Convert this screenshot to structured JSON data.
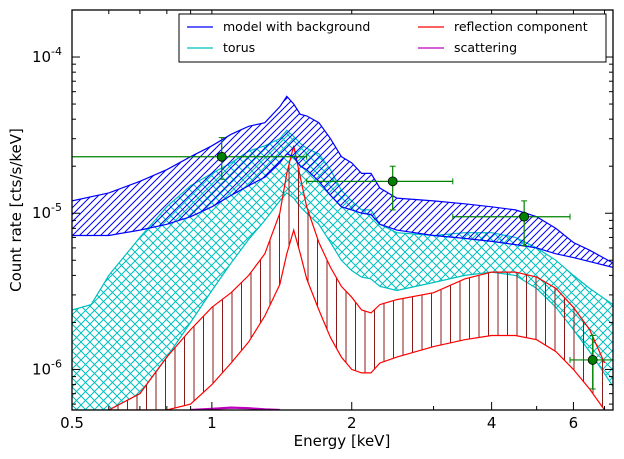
{
  "chart_data": {
    "type": "line",
    "xlabel": "Energy [keV]",
    "ylabel": "Count rate [cts/s/keV]",
    "xscale": "log",
    "yscale": "log",
    "xlim": [
      0.5,
      7.3
    ],
    "ylim": [
      5.5e-07,
      0.0002
    ],
    "x_ticks": [
      {
        "value": 0.5,
        "label": "0.5"
      },
      {
        "value": 1,
        "label": "1"
      },
      {
        "value": 2,
        "label": "2"
      },
      {
        "value": 4,
        "label": "4"
      },
      {
        "value": 6,
        "label": "6"
      }
    ],
    "y_ticks": [
      {
        "value": 1e-06,
        "base": "10",
        "exp": "-6"
      },
      {
        "value": 1e-05,
        "base": "10",
        "exp": "-5"
      },
      {
        "value": 0.0001,
        "base": "10",
        "exp": "-4"
      }
    ],
    "legend_position": "top-right",
    "legend_columns": 2,
    "legend": [
      {
        "label": "model with background",
        "color": "#0000ff"
      },
      {
        "label": "torus",
        "color": "#00bfbf"
      },
      {
        "label": "reflection component",
        "color": "#ff0000"
      },
      {
        "label": "scattering",
        "color": "#bf00bf"
      }
    ],
    "colors": {
      "model": "#0000ff",
      "torus": "#00bfbf",
      "reflection": "#ff0000",
      "reflection_hatch": "#8b1a1a",
      "scattering": "#bf00bf",
      "data": "#008000"
    },
    "series": [
      {
        "name": "model with background",
        "style": "band-hatched-diagonal",
        "x": [
          0.5,
          0.6,
          0.7,
          0.8,
          0.9,
          1.0,
          1.1,
          1.2,
          1.3,
          1.4,
          1.45,
          1.5,
          1.55,
          1.6,
          1.7,
          1.8,
          1.9,
          2.0,
          2.1,
          2.2,
          2.3,
          2.5,
          3.0,
          3.5,
          4.0,
          4.5,
          5.0,
          5.5,
          6.0,
          6.5,
          7.3
        ],
        "upper": [
          1.2e-05,
          1.35e-05,
          1.6e-05,
          1.9e-05,
          2.3e-05,
          2.7e-05,
          3.2e-05,
          3.6e-05,
          3.8e-05,
          4.8e-05,
          5.6e-05,
          5e-05,
          4.3e-05,
          4.2e-05,
          3.8e-05,
          3e-05,
          2.3e-05,
          2.1e-05,
          1.8e-05,
          1.8e-05,
          1.45e-05,
          1.25e-05,
          1.2e-05,
          1.15e-05,
          1.1e-05,
          1.05e-05,
          9.5e-06,
          8e-06,
          6.5e-06,
          5.8e-06,
          4.8e-06
        ],
        "lower": [
          7.2e-06,
          7.2e-06,
          7.8e-06,
          8.5e-06,
          9.5e-06,
          1.1e-05,
          1.3e-05,
          1.5e-05,
          1.7e-05,
          2.1e-05,
          2.4e-05,
          2.3e-05,
          2e-05,
          1.9e-05,
          1.6e-05,
          1.3e-05,
          1.1e-05,
          1.05e-05,
          1e-05,
          9.8e-06,
          8.5e-06,
          7.8e-06,
          7.2e-06,
          6.9e-06,
          6.6e-06,
          6.3e-06,
          6e-06,
          5.5e-06,
          5.2e-06,
          4.9e-06,
          4.5e-06
        ]
      },
      {
        "name": "torus",
        "style": "band-crosshatch",
        "x": [
          0.5,
          0.55,
          0.6,
          0.7,
          0.8,
          0.9,
          1.0,
          1.1,
          1.2,
          1.3,
          1.4,
          1.45,
          1.5,
          1.55,
          1.6,
          1.7,
          1.8,
          1.9,
          2.0,
          2.1,
          2.2,
          2.3,
          2.5,
          3.0,
          3.5,
          4.0,
          4.5,
          5.0,
          5.5,
          6.0,
          6.5,
          7.3
        ],
        "upper": [
          2.4e-06,
          2.6e-06,
          4e-06,
          7e-06,
          1.1e-05,
          1.5e-05,
          1.8e-05,
          2.1e-05,
          2.5e-05,
          2.7e-05,
          3e-05,
          3.4e-05,
          3.1e-05,
          2.8e-05,
          2.6e-05,
          2.4e-05,
          1.9e-05,
          1.4e-05,
          1.2e-05,
          1.05e-05,
          1.05e-05,
          8.5e-06,
          7.5e-06,
          7.2e-06,
          7.5e-06,
          7.5e-06,
          7e-06,
          6e-06,
          5e-06,
          4e-06,
          3.3e-06,
          2.6e-06
        ],
        "lower": [
          5.5e-07,
          5.5e-07,
          5.5e-07,
          7e-07,
          1.2e-06,
          2e-06,
          3.2e-06,
          4.8e-06,
          6.8e-06,
          9e-06,
          1.2e-05,
          1.35e-05,
          1.25e-05,
          1.1e-05,
          1e-05,
          8.5e-06,
          6.5e-06,
          5e-06,
          4.3e-06,
          3.9e-06,
          3.8e-06,
          3.4e-06,
          3.2e-06,
          3.6e-06,
          4e-06,
          4.2e-06,
          4e-06,
          3.3e-06,
          2.5e-06,
          1.8e-06,
          1.3e-06,
          7.8e-07
        ]
      },
      {
        "name": "reflection component",
        "style": "band-hatched-vertical",
        "x": [
          0.6,
          0.7,
          0.8,
          0.9,
          1.0,
          1.1,
          1.2,
          1.3,
          1.4,
          1.45,
          1.5,
          1.55,
          1.6,
          1.7,
          1.8,
          1.9,
          2.0,
          2.1,
          2.2,
          2.3,
          2.5,
          3.0,
          3.5,
          4.0,
          4.5,
          5.0,
          5.5,
          6.0,
          6.5,
          7.0
        ],
        "upper": [
          5.5e-07,
          7e-07,
          1.2e-06,
          1.8e-06,
          2.5e-06,
          3.1e-06,
          4e-06,
          5.5e-06,
          1e-05,
          1.8e-05,
          2.7e-05,
          1.7e-05,
          1.1e-05,
          6.5e-06,
          4.5e-06,
          3.4e-06,
          2.9e-06,
          2.4e-06,
          2.3e-06,
          2.6e-06,
          2.8e-06,
          3.1e-06,
          3.8e-06,
          4.2e-06,
          4.2e-06,
          3.9e-06,
          3.3e-06,
          2.5e-06,
          1.8e-06,
          1.1e-06
        ],
        "lower": [
          5.5e-07,
          5.5e-07,
          5.5e-07,
          6e-07,
          8e-07,
          1.1e-06,
          1.5e-06,
          2.2e-06,
          3.5e-06,
          5.5e-06,
          7.8e-06,
          5.5e-06,
          3.8e-06,
          2.4e-06,
          1.6e-06,
          1.2e-06,
          1e-06,
          9.5e-07,
          9.5e-07,
          1.1e-06,
          1.2e-06,
          1.4e-06,
          1.55e-06,
          1.65e-06,
          1.65e-06,
          1.55e-06,
          1.3e-06,
          1e-06,
          7.5e-07,
          5.5e-07
        ]
      },
      {
        "name": "scattering",
        "style": "line",
        "x": [
          0.9,
          1.0,
          1.1,
          1.2,
          1.3,
          1.4
        ],
        "y": [
          5.5e-07,
          5.6e-07,
          5.7e-07,
          5.65e-07,
          5.55e-07,
          5.5e-07
        ]
      }
    ],
    "data_points": [
      {
        "x": 1.05,
        "y": 2.3e-05,
        "xerr": [
          0.5,
          1.6
        ],
        "yerr": [
          1.65e-05,
          3.05e-05
        ]
      },
      {
        "x": 2.45,
        "y": 1.6e-05,
        "xerr": [
          1.6,
          3.3
        ],
        "yerr": [
          1.05e-05,
          2e-05
        ]
      },
      {
        "x": 4.7,
        "y": 9.5e-06,
        "xerr": [
          3.3,
          5.9
        ],
        "yerr": [
          6.2e-06,
          1.2e-05
        ]
      },
      {
        "x": 6.6,
        "y": 1.15e-06,
        "xerr": [
          5.9,
          7.3
        ],
        "yerr": [
          7.5e-07,
          1.65e-06
        ]
      }
    ]
  }
}
